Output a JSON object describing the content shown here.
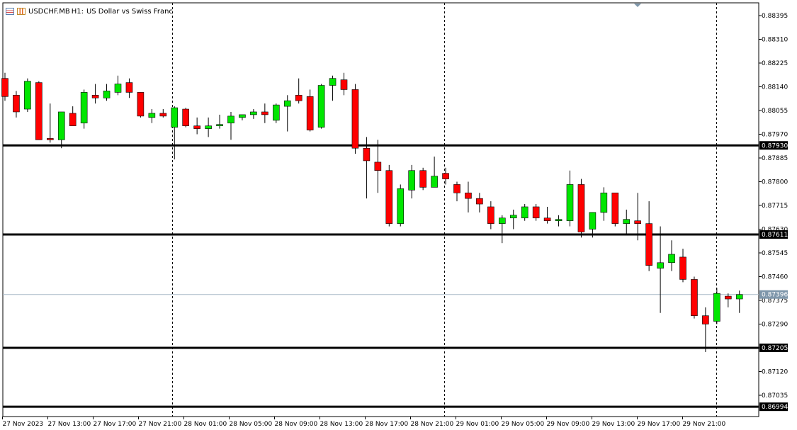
{
  "header": {
    "symbol": "USDCHF.MB",
    "timeframe": "H1:",
    "description": "US Dollar vs Swiss Franc"
  },
  "colors": {
    "bull": "#00e600",
    "bear": "#ff0000",
    "wick": "#000000",
    "level_line": "#000000",
    "current_price_line": "#a9bac7",
    "current_price_label_bg": "#7f97ab",
    "separator": "#000000"
  },
  "chart_data": {
    "type": "candlestick",
    "y_ticks": [
      "0.88395",
      "0.88310",
      "0.88225",
      "0.88140",
      "0.88055",
      "0.87970",
      "0.87885",
      "0.87800",
      "0.87715",
      "0.87630",
      "0.87545",
      "0.87460",
      "0.87375",
      "0.87290",
      "0.87205",
      "0.87120",
      "0.87035"
    ],
    "x_ticks": [
      "27 Nov 2023",
      "27 Nov 13:00",
      "27 Nov 17:00",
      "27 Nov 21:00",
      "28 Nov 01:00",
      "28 Nov 05:00",
      "28 Nov 09:00",
      "28 Nov 13:00",
      "28 Nov 17:00",
      "28 Nov 21:00",
      "29 Nov 01:00",
      "29 Nov 05:00",
      "29 Nov 09:00",
      "29 Nov 13:00",
      "29 Nov 17:00",
      "29 Nov 21:00"
    ],
    "horizontal_levels": [
      0.8793,
      0.87611,
      0.87205,
      0.86994
    ],
    "current_price": 0.87396,
    "ohlc": [
      [
        0.8817,
        0.8819,
        0.8809,
        0.88105
      ],
      [
        0.8811,
        0.88125,
        0.8803,
        0.8805
      ],
      [
        0.8806,
        0.8817,
        0.8805,
        0.8816
      ],
      [
        0.88155,
        0.8816,
        0.8795,
        0.8795
      ],
      [
        0.87955,
        0.8808,
        0.8794,
        0.8795
      ],
      [
        0.8795,
        0.8805,
        0.8792,
        0.8805
      ],
      [
        0.88045,
        0.8807,
        0.88,
        0.88
      ],
      [
        0.8801,
        0.8813,
        0.8799,
        0.8812
      ],
      [
        0.8811,
        0.8815,
        0.8808,
        0.881
      ],
      [
        0.881,
        0.8815,
        0.8809,
        0.88125
      ],
      [
        0.8812,
        0.8818,
        0.8811,
        0.8815
      ],
      [
        0.88155,
        0.8817,
        0.881,
        0.8812
      ],
      [
        0.8812,
        0.8812,
        0.8803,
        0.88035
      ],
      [
        0.8803,
        0.8806,
        0.8801,
        0.88045
      ],
      [
        0.88045,
        0.8806,
        0.8803,
        0.88035
      ],
      [
        0.87995,
        0.8807,
        0.8788,
        0.88065
      ],
      [
        0.8806,
        0.88065,
        0.87995,
        0.88
      ],
      [
        0.88,
        0.8803,
        0.8797,
        0.8799
      ],
      [
        0.8799,
        0.8803,
        0.8796,
        0.88
      ],
      [
        0.88,
        0.8804,
        0.8799,
        0.88005
      ],
      [
        0.8801,
        0.8805,
        0.8795,
        0.88035
      ],
      [
        0.8803,
        0.8804,
        0.8802,
        0.8804
      ],
      [
        0.8804,
        0.8806,
        0.88025,
        0.8805
      ],
      [
        0.8805,
        0.8808,
        0.8801,
        0.8804
      ],
      [
        0.8802,
        0.8808,
        0.8801,
        0.88075
      ],
      [
        0.8807,
        0.8811,
        0.8798,
        0.8809
      ],
      [
        0.8811,
        0.8817,
        0.8808,
        0.8809
      ],
      [
        0.88105,
        0.8813,
        0.8798,
        0.87985
      ],
      [
        0.87995,
        0.8815,
        0.8799,
        0.88145
      ],
      [
        0.88145,
        0.8818,
        0.8809,
        0.8817
      ],
      [
        0.88165,
        0.8819,
        0.8811,
        0.8813
      ],
      [
        0.8813,
        0.8815,
        0.879,
        0.8792
      ],
      [
        0.8792,
        0.8796,
        0.8774,
        0.87875
      ],
      [
        0.8787,
        0.8795,
        0.8776,
        0.8784
      ],
      [
        0.8784,
        0.8786,
        0.8764,
        0.8765
      ],
      [
        0.8765,
        0.8779,
        0.8764,
        0.87775
      ],
      [
        0.8777,
        0.8786,
        0.8774,
        0.8784
      ],
      [
        0.8784,
        0.8785,
        0.8777,
        0.8778
      ],
      [
        0.8778,
        0.8789,
        0.8778,
        0.8782
      ],
      [
        0.8783,
        0.8785,
        0.8779,
        0.8781
      ],
      [
        0.8779,
        0.878,
        0.8773,
        0.8776
      ],
      [
        0.8776,
        0.878,
        0.8769,
        0.8774
      ],
      [
        0.8774,
        0.8776,
        0.8769,
        0.8772
      ],
      [
        0.8771,
        0.8773,
        0.8763,
        0.8765
      ],
      [
        0.8765,
        0.8768,
        0.8758,
        0.8767
      ],
      [
        0.8767,
        0.877,
        0.8763,
        0.8768
      ],
      [
        0.8767,
        0.8772,
        0.8766,
        0.8771
      ],
      [
        0.8771,
        0.8772,
        0.8766,
        0.8767
      ],
      [
        0.8767,
        0.8771,
        0.8765,
        0.8766
      ],
      [
        0.8766,
        0.8768,
        0.8764,
        0.87665
      ],
      [
        0.8766,
        0.8784,
        0.8764,
        0.8779
      ],
      [
        0.8779,
        0.8781,
        0.876,
        0.8762
      ],
      [
        0.8763,
        0.8769,
        0.876,
        0.8769
      ],
      [
        0.8769,
        0.8778,
        0.8766,
        0.8776
      ],
      [
        0.8776,
        0.8776,
        0.8764,
        0.8765
      ],
      [
        0.8765,
        0.877,
        0.8761,
        0.87665
      ],
      [
        0.8766,
        0.8776,
        0.8759,
        0.8765
      ],
      [
        0.8765,
        0.8773,
        0.8748,
        0.875
      ],
      [
        0.8749,
        0.8764,
        0.8733,
        0.8751
      ],
      [
        0.8751,
        0.8759,
        0.8748,
        0.8754
      ],
      [
        0.8753,
        0.8756,
        0.8744,
        0.8745
      ],
      [
        0.8745,
        0.8746,
        0.8731,
        0.8732
      ],
      [
        0.8732,
        0.8735,
        0.8719,
        0.8729
      ],
      [
        0.873,
        0.8742,
        0.8729,
        0.874
      ],
      [
        0.8739,
        0.874,
        0.8735,
        0.8738
      ],
      [
        0.8738,
        0.8741,
        0.8733,
        0.87396
      ]
    ]
  }
}
